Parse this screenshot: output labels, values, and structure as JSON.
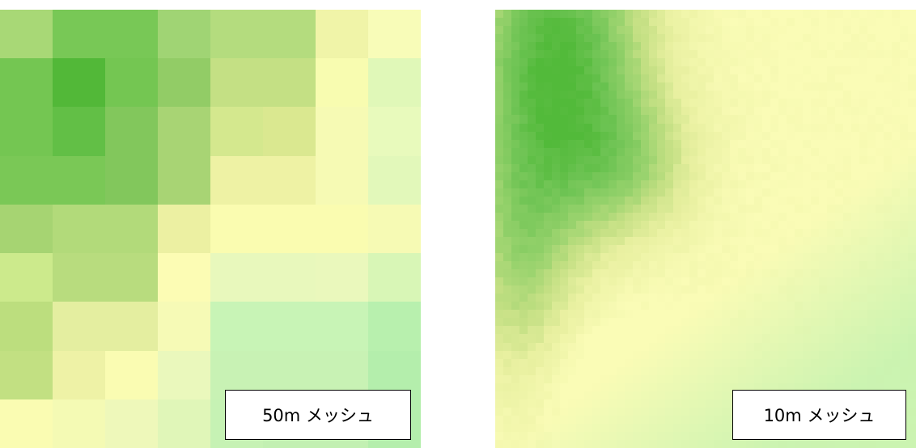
{
  "left": {
    "label": "50m メッシュ",
    "cols": 8,
    "rows": 9,
    "cells": [
      "#a8d876",
      "#78c856",
      "#78c856",
      "#a0d474",
      "#b4dc7e",
      "#b4dc7e",
      "#f0f4a8",
      "#f8fcb8",
      "#74c652",
      "#52b838",
      "#74c652",
      "#92cc66",
      "#c4e084",
      "#c4e084",
      "#f8fcb0",
      "#e0f8b8",
      "#74c652",
      "#62bf46",
      "#82c75c",
      "#a8d474",
      "#d4e88e",
      "#dae890",
      "#f6fab4",
      "#e8fabc",
      "#7ac856",
      "#7ac856",
      "#82c75c",
      "#a8d474",
      "#eef2a4",
      "#eef2a4",
      "#f6fab4",
      "#e2f8ba",
      "#a6d472",
      "#b2da7a",
      "#b2da7a",
      "#ecf0a2",
      "#fafcb0",
      "#fafcb0",
      "#fafcb0",
      "#f6fab4",
      "#ccea8c",
      "#b8dc7e",
      "#b8dc7e",
      "#fcfcb4",
      "#e8f8bc",
      "#e8f8bc",
      "#eaf8bc",
      "#d8f6b6",
      "#bcde7e",
      "#e4eea0",
      "#e4eea0",
      "#f6fab6",
      "#c8f4b6",
      "#c8f4b6",
      "#c8f4b6",
      "#b8f0ae",
      "#c2e082",
      "#eef2a6",
      "#fafcb2",
      "#eaf8bc",
      "#c8f2b4",
      "#c8f2b4",
      "#c8f2b4",
      "#b4eeac",
      "#fafcb2",
      "#f4fab4",
      "#eef8ba",
      "#e0f6b8",
      "#c6f2b4",
      "#c2f0b2",
      "#c2f0b2",
      "#b4eeac"
    ]
  },
  "right": {
    "label": "10m メッシュ"
  }
}
